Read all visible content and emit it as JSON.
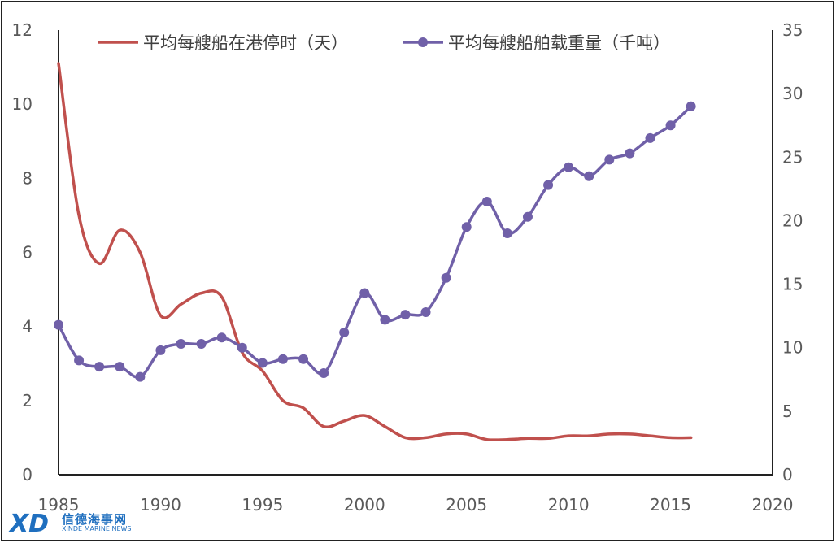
{
  "chart_data": {
    "type": "line",
    "title": "",
    "x": [
      1985,
      1986,
      1987,
      1988,
      1989,
      1990,
      1991,
      1992,
      1993,
      1994,
      1995,
      1996,
      1997,
      1998,
      1999,
      2000,
      2001,
      2002,
      2003,
      2004,
      2005,
      2006,
      2007,
      2008,
      2009,
      2010,
      2011,
      2012,
      2013,
      2014,
      2015,
      2016
    ],
    "xlim": [
      1985,
      2020
    ],
    "x_ticks": [
      "1985",
      "1990",
      "1995",
      "2000",
      "2005",
      "2010",
      "2015",
      "2020"
    ],
    "y_left": {
      "lim": [
        0,
        12
      ],
      "ticks": [
        "0",
        "2",
        "4",
        "6",
        "8",
        "10",
        "12"
      ]
    },
    "y_right": {
      "lim": [
        0,
        35
      ],
      "ticks": [
        "0",
        "5",
        "10",
        "15",
        "20",
        "25",
        "30",
        "35"
      ]
    },
    "legend_position": "top",
    "grid": false,
    "series": [
      {
        "name": "平均每艘船在港停时（天）",
        "axis": "left",
        "color": "#c0504d",
        "markers": false,
        "values": [
          11.1,
          7.0,
          5.7,
          6.6,
          6.0,
          4.3,
          4.6,
          4.9,
          4.8,
          3.3,
          2.8,
          2.0,
          1.8,
          1.3,
          1.45,
          1.6,
          1.3,
          1.0,
          1.0,
          1.1,
          1.1,
          0.95,
          0.95,
          0.98,
          0.98,
          1.05,
          1.05,
          1.1,
          1.1,
          1.05,
          1.0,
          1.0
        ]
      },
      {
        "name": "平均每艘船舶载重量（千吨）",
        "axis": "right",
        "color": "#7060a8",
        "markers": true,
        "values": [
          11.8,
          9.0,
          8.5,
          8.5,
          7.7,
          9.8,
          10.3,
          10.3,
          10.8,
          10.0,
          8.8,
          9.1,
          9.1,
          8.0,
          11.2,
          14.3,
          12.2,
          12.6,
          12.8,
          15.5,
          19.5,
          21.5,
          19.0,
          20.3,
          22.8,
          24.2,
          23.5,
          24.8,
          25.3,
          26.5,
          27.5,
          29.0
        ]
      }
    ]
  },
  "watermark": {
    "logo_letters": "XD",
    "title": "信德海事网",
    "subtitle": "XINDE MARINE NEWS"
  },
  "colors": {
    "axis": "#222222",
    "logo": "#1f6fbf"
  }
}
